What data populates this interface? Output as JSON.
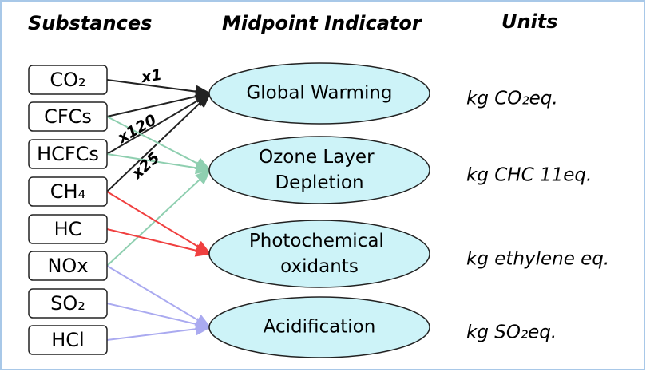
{
  "headers": {
    "substances": "Substances",
    "indicator": "Midpoint Indicator",
    "units": "Units"
  },
  "substances": [
    "CO₂",
    "CFCs",
    "HCFCs",
    "CH₄",
    "HC",
    "NOx",
    "SO₂",
    "HCl"
  ],
  "indicators": [
    "Global Warming",
    "Ozone Layer Depletion",
    "Photochemical oxidants",
    "Acidification"
  ],
  "units": [
    "kg CO₂eq.",
    "kg CHC 11eq.",
    "kg ethylene eq.",
    "kg SO₂eq."
  ],
  "factors": [
    "x1",
    "x120",
    "x25"
  ]
}
